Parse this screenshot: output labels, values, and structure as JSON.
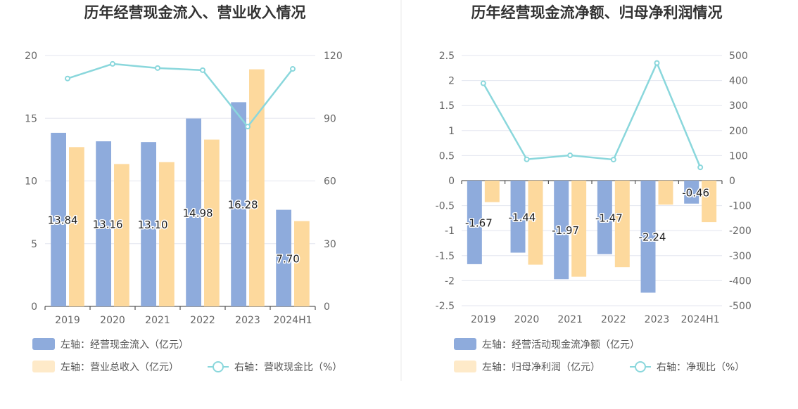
{
  "colors": {
    "series1": "#8eabdc",
    "series2": "#fdd99d",
    "line": "#8ad7dc",
    "divider": "#e8e8e8"
  },
  "chart_data": [
    {
      "type": "bar",
      "title": "历年经营现金流入、营业收入情况",
      "categories": [
        "2019",
        "2020",
        "2021",
        "2022",
        "2023",
        "2024H1"
      ],
      "left_axis": {
        "min": 0,
        "max": 20,
        "ticks": [
          "0",
          "5",
          "10",
          "15",
          "20"
        ]
      },
      "right_axis": {
        "min": 0,
        "max": 120,
        "ticks": [
          "0",
          "30",
          "60",
          "90",
          "120"
        ]
      },
      "series": [
        {
          "name": "左轴：经营现金流入（亿元）",
          "type": "bar",
          "axis": "left",
          "values": [
            13.84,
            13.16,
            13.1,
            14.98,
            16.28,
            7.7
          ],
          "labels": [
            "13.84",
            "13.16",
            "13.10",
            "14.98",
            "16.28",
            "7.70"
          ]
        },
        {
          "name": "左轴：营业总收入（亿元）",
          "type": "bar",
          "axis": "left",
          "values": [
            12.7,
            11.35,
            11.5,
            13.3,
            18.9,
            6.8
          ]
        },
        {
          "name": "右轴：营收现金比（%）",
          "type": "line",
          "axis": "right",
          "values": [
            109,
            116,
            114,
            113,
            86,
            113.6
          ]
        }
      ],
      "legend": [
        "左轴：经营现金流入（亿元）",
        "左轴：营业总收入（亿元）",
        "右轴：营收现金比（%）"
      ]
    },
    {
      "type": "bar",
      "title": "历年经营现金流净额、归母净利润情况",
      "categories": [
        "2019",
        "2020",
        "2021",
        "2022",
        "2023",
        "2024H1"
      ],
      "left_axis": {
        "min": -2.5,
        "max": 2.5,
        "ticks": [
          "-2.5",
          "-2",
          "-1.5",
          "-1",
          "-0.5",
          "0",
          "0.5",
          "1",
          "1.5",
          "2",
          "2.5"
        ]
      },
      "right_axis": {
        "min": -500,
        "max": 500,
        "ticks": [
          "-500",
          "-400",
          "-300",
          "-200",
          "-100",
          "0",
          "100",
          "200",
          "300",
          "400",
          "500"
        ]
      },
      "series": [
        {
          "name": "左轴：经营活动现金流净额（亿元）",
          "type": "bar",
          "axis": "left",
          "values": [
            -1.67,
            -1.44,
            -1.97,
            -1.47,
            -2.24,
            -0.46
          ],
          "labels": [
            "-1.67",
            "-1.44",
            "-1.97",
            "-1.47",
            "-2.24",
            "-0.46"
          ]
        },
        {
          "name": "左轴：归母净利润（亿元）",
          "type": "bar",
          "axis": "left",
          "values": [
            -0.43,
            -1.68,
            -1.92,
            -1.73,
            -0.48,
            -0.83
          ]
        },
        {
          "name": "右轴：净现比（%）",
          "type": "line",
          "axis": "right",
          "values": [
            389,
            85,
            101,
            84,
            470,
            53
          ]
        }
      ],
      "legend": [
        "左轴：经营活动现金流净额（亿元）",
        "左轴：归母净利润（亿元）",
        "右轴：净现比（%）"
      ]
    }
  ]
}
